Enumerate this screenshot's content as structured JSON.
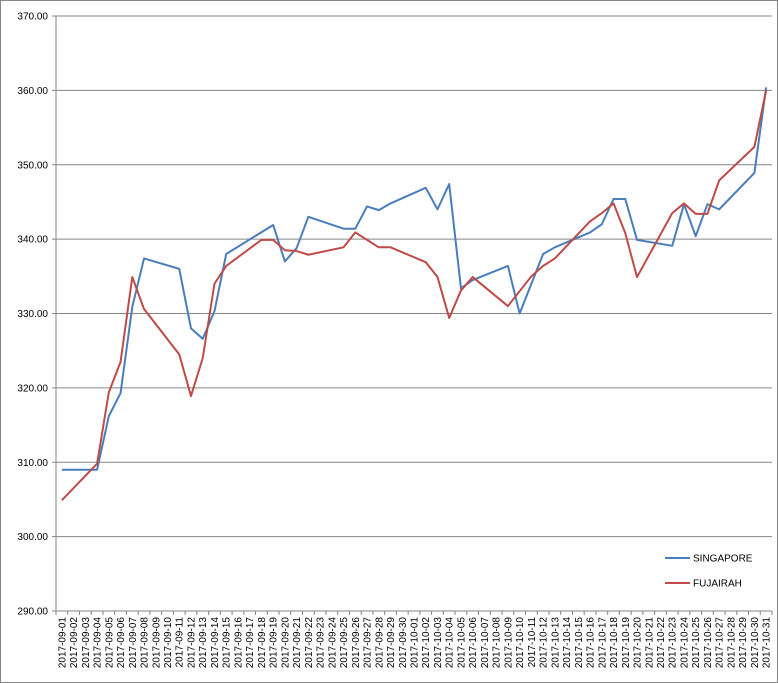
{
  "chart_data": {
    "type": "line",
    "categories": [
      "2017-09-01",
      "2017-09-02",
      "2017-09-03",
      "2017-09-04",
      "2017-09-05",
      "2017-09-06",
      "2017-09-07",
      "2017-09-08",
      "2017-09-09",
      "2017-09-10",
      "2017-09-11",
      "2017-09-12",
      "2017-09-13",
      "2017-09-14",
      "2017-09-15",
      "2017-09-16",
      "2017-09-17",
      "2017-09-18",
      "2017-09-19",
      "2017-09-20",
      "2017-09-21",
      "2017-09-22",
      "2017-09-23",
      "2017-09-24",
      "2017-09-25",
      "2017-09-26",
      "2017-09-27",
      "2017-09-28",
      "2017-09-29",
      "2017-09-30",
      "2017-10-01",
      "2017-10-02",
      "2017-10-03",
      "2017-10-04",
      "2017-10-05",
      "2017-10-06",
      "2017-10-07",
      "2017-10-08",
      "2017-10-09",
      "2017-10-10",
      "2017-10-11",
      "2017-10-12",
      "2017-10-13",
      "2017-10-14",
      "2017-10-15",
      "2017-10-16",
      "2017-10-17",
      "2017-10-18",
      "2017-10-19",
      "2017-10-20",
      "2017-10-21",
      "2017-10-22",
      "2017-10-23",
      "2017-10-24",
      "2017-10-25",
      "2017-10-26",
      "2017-10-27",
      "2017-10-28",
      "2017-10-29",
      "2017-10-30",
      "2017-10-31"
    ],
    "series": [
      {
        "name": "SINGAPORE",
        "color": "#4a7ebb",
        "x": [
          "2017-09-01",
          "2017-09-04",
          "2017-09-05",
          "2017-09-06",
          "2017-09-07",
          "2017-09-08",
          "2017-09-11",
          "2017-09-12",
          "2017-09-13",
          "2017-09-14",
          "2017-09-15",
          "2017-09-19",
          "2017-09-20",
          "2017-09-21",
          "2017-09-22",
          "2017-09-25",
          "2017-09-26",
          "2017-09-27",
          "2017-09-28",
          "2017-09-29",
          "2017-10-02",
          "2017-10-03",
          "2017-10-04",
          "2017-10-05",
          "2017-10-06",
          "2017-10-09",
          "2017-10-10",
          "2017-10-12",
          "2017-10-13",
          "2017-10-16",
          "2017-10-17",
          "2017-10-18",
          "2017-10-19",
          "2017-10-20",
          "2017-10-23",
          "2017-10-24",
          "2017-10-25",
          "2017-10-26",
          "2017-10-27",
          "2017-10-30",
          "2017-10-31"
        ],
        "values": [
          309.0,
          309.0,
          316.2,
          319.3,
          330.9,
          337.4,
          336.0,
          328.0,
          326.6,
          330.3,
          338.0,
          341.9,
          337.0,
          338.8,
          343.0,
          341.4,
          341.4,
          344.4,
          343.9,
          344.8,
          346.9,
          344.0,
          347.4,
          333.4,
          334.5,
          336.4,
          330.0,
          338.0,
          338.9,
          340.9,
          342.0,
          345.4,
          345.4,
          339.9,
          339.1,
          344.7,
          340.4,
          344.7,
          344.0,
          348.9,
          360.4
        ]
      },
      {
        "name": "FUJAIRAH",
        "color": "#be4b48",
        "x": [
          "2017-09-01",
          "2017-09-04",
          "2017-09-05",
          "2017-09-06",
          "2017-09-07",
          "2017-09-08",
          "2017-09-11",
          "2017-09-12",
          "2017-09-13",
          "2017-09-14",
          "2017-09-15",
          "2017-09-18",
          "2017-09-19",
          "2017-09-20",
          "2017-09-21",
          "2017-09-22",
          "2017-09-25",
          "2017-09-26",
          "2017-09-27",
          "2017-09-28",
          "2017-09-29",
          "2017-10-02",
          "2017-10-03",
          "2017-10-04",
          "2017-10-05",
          "2017-10-06",
          "2017-10-09",
          "2017-10-10",
          "2017-10-11",
          "2017-10-12",
          "2017-10-13",
          "2017-10-16",
          "2017-10-17",
          "2017-10-18",
          "2017-10-19",
          "2017-10-20",
          "2017-10-23",
          "2017-10-24",
          "2017-10-25",
          "2017-10-26",
          "2017-10-27",
          "2017-10-30",
          "2017-10-31"
        ],
        "values": [
          304.9,
          309.8,
          319.4,
          323.5,
          334.9,
          330.6,
          324.5,
          318.9,
          324.0,
          334.0,
          336.4,
          339.9,
          339.9,
          338.5,
          338.4,
          337.9,
          338.9,
          340.9,
          339.9,
          338.9,
          338.9,
          336.9,
          334.9,
          329.4,
          333.1,
          334.9,
          331.0,
          333.0,
          335.0,
          336.4,
          337.4,
          342.4,
          343.5,
          344.8,
          340.8,
          334.9,
          343.5,
          344.8,
          343.4,
          343.4,
          347.9,
          352.4,
          360.0
        ]
      }
    ],
    "ylim": [
      290,
      370
    ],
    "yticks": [
      {
        "value": 290,
        "label": "290.00"
      },
      {
        "value": 300,
        "label": "300.00"
      },
      {
        "value": 310,
        "label": "310.00"
      },
      {
        "value": 320,
        "label": "320.00"
      },
      {
        "value": 330,
        "label": "330.00"
      },
      {
        "value": 340,
        "label": "340.00"
      },
      {
        "value": 350,
        "label": "350.00"
      },
      {
        "value": 360,
        "label": "360.00"
      },
      {
        "value": 370,
        "label": "370.00"
      }
    ],
    "grid": true,
    "legend": "right"
  }
}
